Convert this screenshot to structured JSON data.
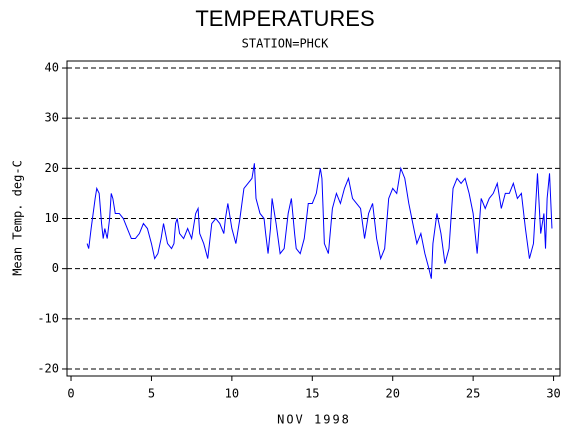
{
  "chart_data": {
    "type": "line",
    "title": "TEMPERATURES",
    "subtitle": "STATION=PHCK",
    "x_label": "NOV 1998",
    "y_label": "Mean Temp. deg-C",
    "color": "#0000ff",
    "xlim": [
      -0.25,
      30.4
    ],
    "xticks": [
      0,
      5,
      10,
      15,
      20,
      25,
      30
    ],
    "ylim": [
      -21.4,
      41.4
    ],
    "yticks": [
      -20,
      -10,
      0,
      10,
      20,
      30,
      40
    ],
    "grid": true,
    "x": [
      1.0,
      1.1,
      1.25,
      1.5,
      1.6,
      1.75,
      1.9,
      2.0,
      2.1,
      2.25,
      2.4,
      2.5,
      2.6,
      2.75,
      3.0,
      3.25,
      3.5,
      3.75,
      4.0,
      4.25,
      4.5,
      4.75,
      5.0,
      5.2,
      5.4,
      5.6,
      5.75,
      6.0,
      6.25,
      6.4,
      6.5,
      6.6,
      6.75,
      7.0,
      7.25,
      7.5,
      7.75,
      7.9,
      8.0,
      8.25,
      8.5,
      8.75,
      9.0,
      9.25,
      9.5,
      9.6,
      9.75,
      10.0,
      10.25,
      10.5,
      10.75,
      11.0,
      11.25,
      11.4,
      11.5,
      11.75,
      12.0,
      12.1,
      12.25,
      12.4,
      12.5,
      12.75,
      13.0,
      13.25,
      13.5,
      13.7,
      13.9,
      14.0,
      14.25,
      14.5,
      14.75,
      15.0,
      15.25,
      15.5,
      15.6,
      15.75,
      16.0,
      16.25,
      16.5,
      16.75,
      17.0,
      17.25,
      17.5,
      17.75,
      18.0,
      18.25,
      18.5,
      18.75,
      19.0,
      19.25,
      19.5,
      19.75,
      20.0,
      20.25,
      20.5,
      20.75,
      21.0,
      21.25,
      21.5,
      21.75,
      22.0,
      22.25,
      22.4,
      22.5,
      22.75,
      23.0,
      23.25,
      23.5,
      23.75,
      24.0,
      24.25,
      24.5,
      24.75,
      25.0,
      25.25,
      25.5,
      25.75,
      26.0,
      26.25,
      26.5,
      26.75,
      27.0,
      27.25,
      27.5,
      27.75,
      28.0,
      28.25,
      28.5,
      28.75,
      29.0,
      29.2,
      29.4,
      29.5,
      29.6,
      29.75,
      29.9
    ],
    "values": [
      5,
      4,
      8,
      14,
      16,
      15,
      9,
      6,
      8,
      6,
      10,
      15,
      14,
      11,
      11,
      10,
      8,
      6,
      6,
      7,
      9,
      8,
      5,
      2,
      3,
      6,
      9,
      5,
      4,
      5,
      9,
      10,
      7,
      6,
      8,
      6,
      11,
      12,
      7,
      5,
      2,
      9,
      10,
      9,
      7,
      10,
      13,
      8,
      5,
      10,
      16,
      17,
      18,
      21,
      14,
      11,
      10,
      7,
      3,
      8,
      14,
      9,
      3,
      4,
      11,
      14,
      7,
      4,
      3,
      6,
      13,
      13,
      15,
      20,
      18,
      5,
      3,
      12,
      15,
      13,
      16,
      18,
      14,
      13,
      12,
      6,
      11,
      13,
      6,
      2,
      4,
      14,
      16,
      15,
      20,
      18,
      13,
      9,
      5,
      7,
      3,
      0,
      -2,
      5,
      11,
      7,
      1,
      4,
      16,
      18,
      17,
      18,
      15,
      11,
      3,
      14,
      12,
      14,
      15,
      17,
      12,
      15,
      15,
      17,
      14,
      15,
      8,
      2,
      5,
      19,
      7,
      11,
      4,
      14,
      19,
      8
    ]
  }
}
